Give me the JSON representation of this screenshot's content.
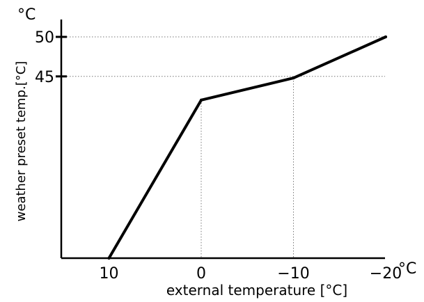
{
  "chart_data": {
    "type": "line",
    "title": "",
    "xlabel": "external temperature [°C]",
    "ylabel": "weather preset temp.[°C]",
    "x_unit_label": "°C",
    "y_unit_label": "°C",
    "x_axis_reversed": true,
    "xlim": [
      15,
      -20
    ],
    "ylim": [
      22,
      53
    ],
    "x_ticks": [
      {
        "value": 10,
        "label": "10"
      },
      {
        "value": 0,
        "label": "0"
      },
      {
        "value": -10,
        "label": "−10"
      },
      {
        "value": -20,
        "label": "−20"
      }
    ],
    "y_ticks": [
      {
        "value": 50,
        "label": "50"
      },
      {
        "value": 45,
        "label": "45"
      }
    ],
    "series": [
      {
        "points": [
          {
            "x": 10,
            "y": 22
          },
          {
            "x": 0,
            "y": 42
          },
          {
            "x": -10,
            "y": 44.8
          },
          {
            "x": -20,
            "y": 50
          }
        ]
      }
    ],
    "reference_lines": [
      {
        "orientation": "horizontal",
        "value": 50,
        "style": "dotted"
      },
      {
        "orientation": "horizontal",
        "value": 45,
        "style": "dotted"
      },
      {
        "orientation": "vertical",
        "value": 0,
        "style": "dotted"
      },
      {
        "orientation": "vertical",
        "value": -10,
        "style": "dotted"
      }
    ],
    "grid": false,
    "legend": "none",
    "line_color": "#000000"
  }
}
